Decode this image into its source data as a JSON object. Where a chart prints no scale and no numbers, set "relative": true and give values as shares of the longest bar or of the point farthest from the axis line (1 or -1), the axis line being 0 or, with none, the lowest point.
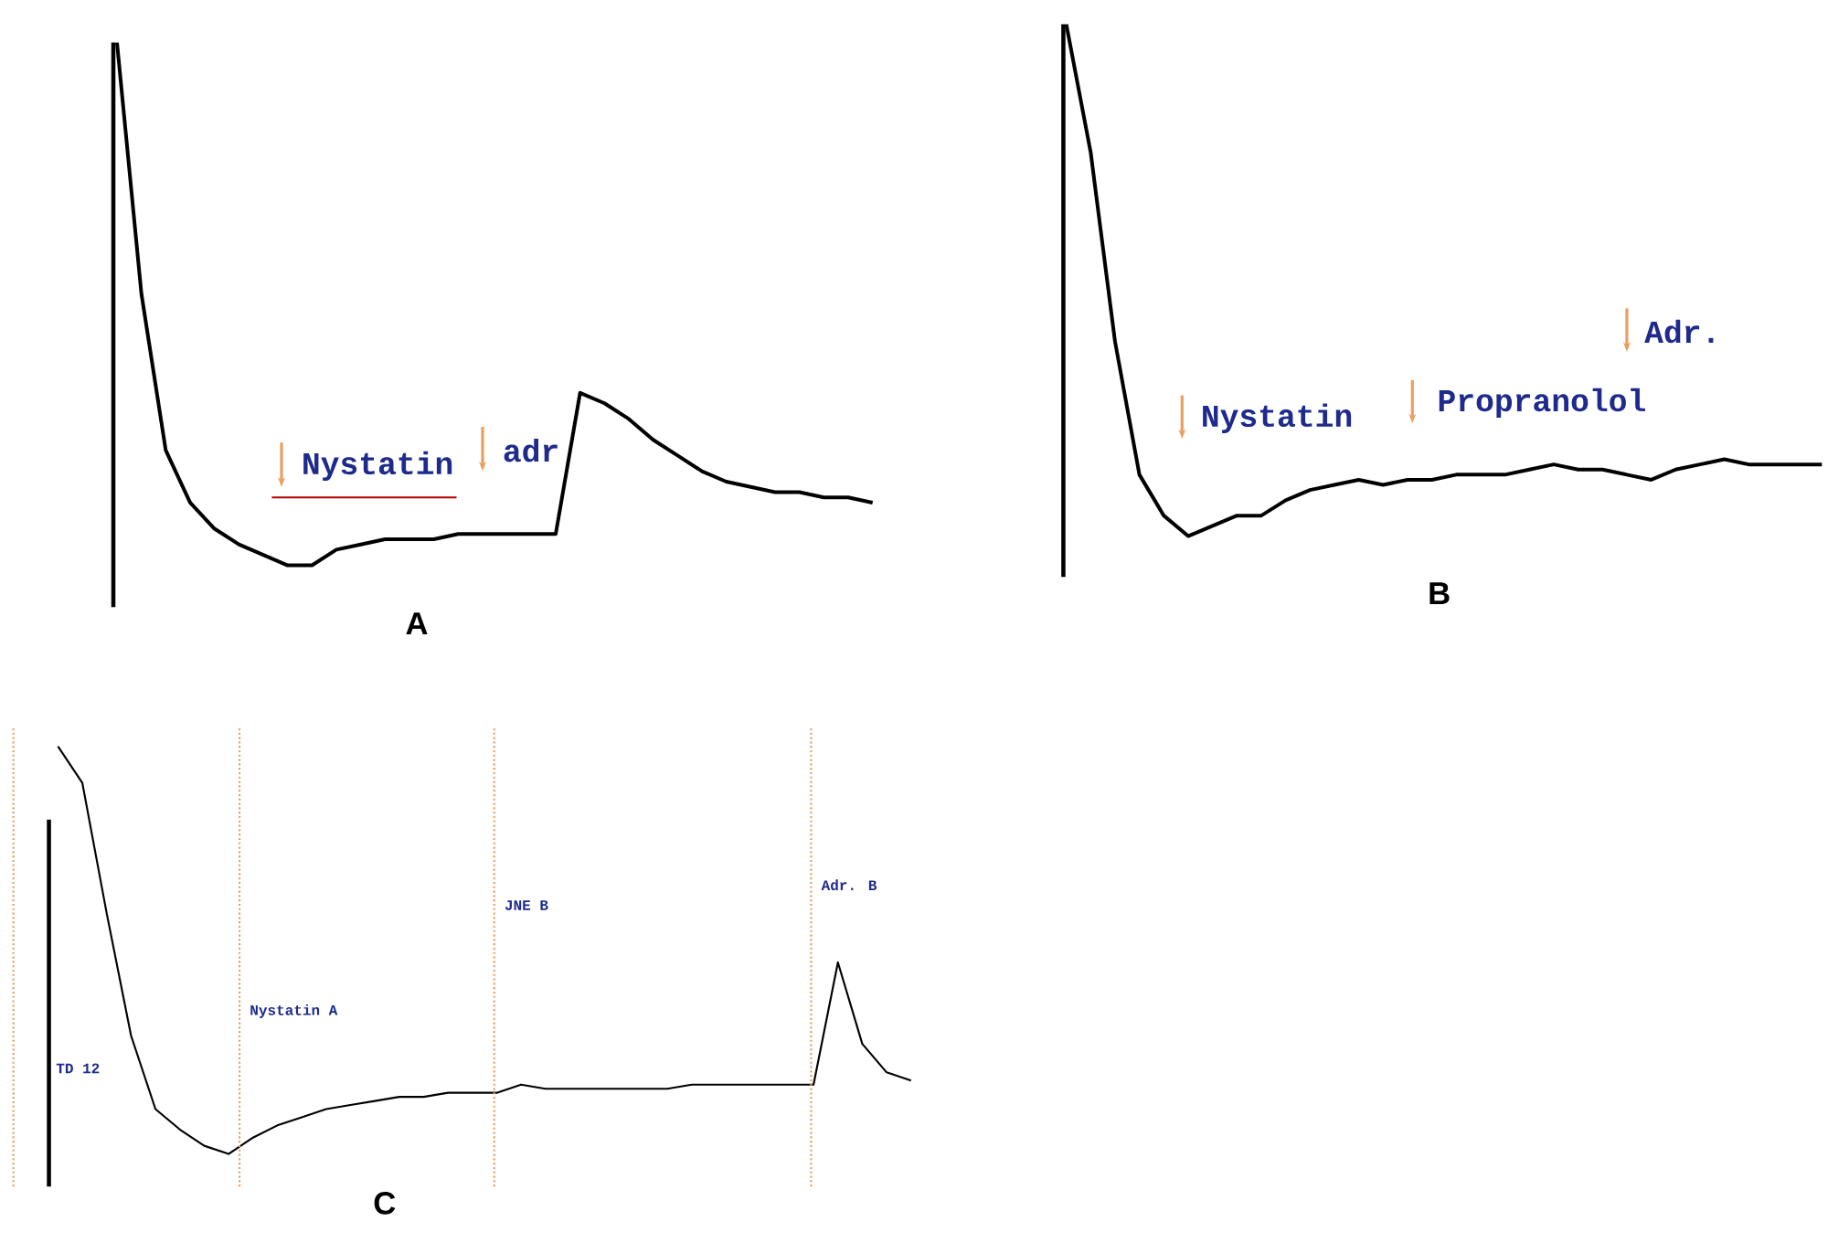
{
  "chart_data": [
    {
      "type": "line",
      "title": "A",
      "relative": true,
      "color": "#000000",
      "categories": [
        null,
        null,
        null,
        null,
        null,
        null,
        null,
        null,
        null,
        null,
        null,
        null,
        null,
        null,
        null,
        null,
        null,
        null,
        null,
        null,
        null,
        null,
        null,
        null,
        null,
        null,
        null,
        null,
        null,
        null,
        null,
        null
      ],
      "values": [
        1.0,
        0.52,
        0.22,
        0.12,
        0.07,
        0.04,
        0.02,
        0.0,
        0.0,
        0.03,
        0.04,
        0.05,
        0.05,
        0.05,
        0.06,
        0.06,
        0.06,
        0.06,
        0.06,
        0.33,
        0.31,
        0.28,
        0.24,
        0.21,
        0.18,
        0.16,
        0.15,
        0.14,
        0.14,
        0.13,
        0.13,
        0.12
      ],
      "annotations": [
        "Nystatin",
        "adr"
      ]
    },
    {
      "type": "line",
      "title": "B",
      "relative": true,
      "color": "#000000",
      "categories": [
        null,
        null,
        null,
        null,
        null,
        null,
        null,
        null,
        null,
        null,
        null,
        null,
        null,
        null,
        null,
        null,
        null,
        null,
        null,
        null,
        null,
        null,
        null,
        null,
        null,
        null,
        null,
        null,
        null,
        null,
        null,
        null
      ],
      "values": [
        1.0,
        0.75,
        0.38,
        0.12,
        0.04,
        0.0,
        0.02,
        0.04,
        0.04,
        0.07,
        0.09,
        0.1,
        0.11,
        0.1,
        0.11,
        0.11,
        0.12,
        0.12,
        0.12,
        0.13,
        0.14,
        0.13,
        0.13,
        0.12,
        0.11,
        0.13,
        0.14,
        0.15,
        0.14,
        0.14,
        0.14,
        0.14
      ],
      "annotations": [
        "Nystatin",
        "Propranolol",
        "Adr."
      ]
    },
    {
      "type": "line",
      "title": "C",
      "relative": true,
      "color": "#000000",
      "categories": [
        null,
        null,
        null,
        null,
        null,
        null,
        null,
        null,
        null,
        null,
        null,
        null,
        null,
        null,
        null,
        null,
        null,
        null,
        null,
        null,
        null,
        null,
        null,
        null,
        null,
        null,
        null,
        null,
        null,
        null,
        null,
        null,
        null,
        null,
        null,
        null
      ],
      "values": [
        1.0,
        0.91,
        0.59,
        0.29,
        0.11,
        0.06,
        0.02,
        0.0,
        0.04,
        0.07,
        0.09,
        0.11,
        0.12,
        0.13,
        0.14,
        0.14,
        0.15,
        0.15,
        0.15,
        0.17,
        0.16,
        0.16,
        0.16,
        0.16,
        0.16,
        0.16,
        0.17,
        0.17,
        0.17,
        0.17,
        0.17,
        0.17,
        0.47,
        0.27,
        0.2,
        0.18
      ],
      "annotations": [
        "TD 12",
        "Nystatin A",
        "JNE B",
        "Adr. B"
      ]
    }
  ]
}
